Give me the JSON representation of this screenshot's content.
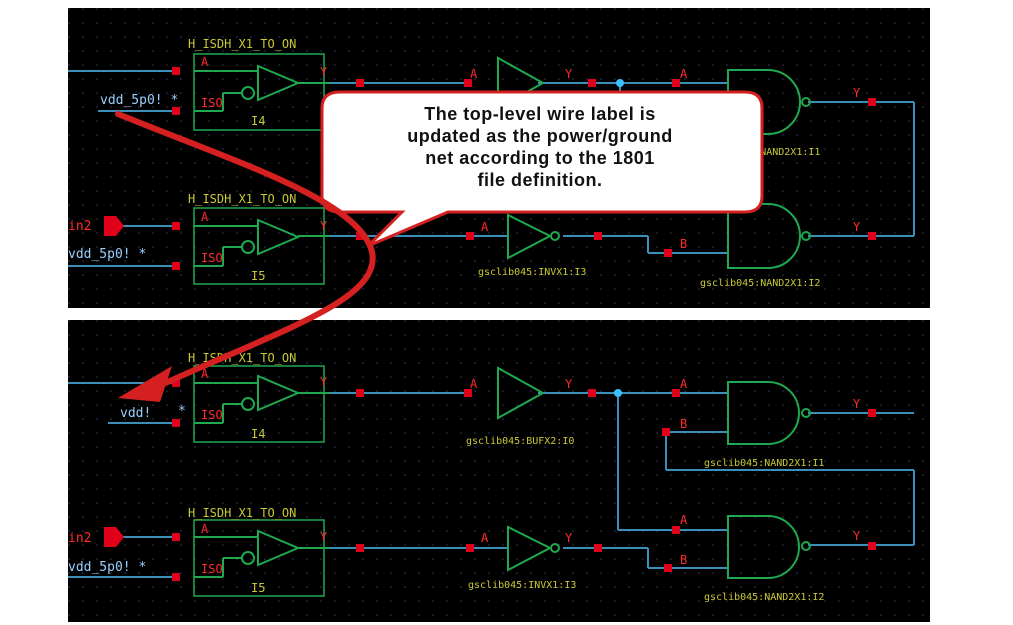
{
  "callout": {
    "text_lines": [
      "The top-level wire label is",
      "updated as the power/ground",
      "net according to the 1801",
      "file definition."
    ]
  },
  "colors": {
    "background": "#000000",
    "wire": "#3b8fb8",
    "gate": "#1fa84f",
    "pin": "#e0001a",
    "pin_label": "#ff2a2a",
    "inst_label": "#c9c935",
    "net_label": "#9ad0ff",
    "arrow": "#d42020",
    "callout_border": "#d42020"
  },
  "top_panel": {
    "iso1": {
      "cell": "H_ISDH_X1_TO_ON",
      "pin_a": "A",
      "pin_iso": "ISO",
      "pin_y": "Y",
      "inst": "I4"
    },
    "iso2": {
      "cell": "H_ISDH_X1_TO_ON",
      "pin_a": "A",
      "pin_iso": "ISO",
      "pin_y": "Y",
      "inst": "I5"
    },
    "net_vdd1": "vdd_5p0! *",
    "net_vdd2": "vdd_5p0! *",
    "input_in2": "in2",
    "buf": {
      "pin_a": "A",
      "pin_y": "Y"
    },
    "nand1": {
      "pin_a": "A",
      "pin_y": "Y",
      "inst": "gsclib045:NAND2X1:I1"
    },
    "inv": {
      "pin_a": "A",
      "inst": "gsclib045:INVX1:I3"
    },
    "nand2": {
      "pin_b": "B",
      "pin_y": "Y",
      "inst": "gsclib045:NAND2X1:I2"
    }
  },
  "bottom_panel": {
    "iso1": {
      "cell": "H_ISDH_X1_TO_ON",
      "pin_a": "A",
      "pin_iso": "ISO",
      "pin_y": "Y",
      "inst": "I4"
    },
    "iso2": {
      "cell": "H_ISDH_X1_TO_ON",
      "pin_a": "A",
      "pin_iso": "ISO",
      "pin_y": "Y",
      "inst": "I5"
    },
    "net_vdd1": "vdd!",
    "net_vdd1_star": "*",
    "net_vdd2": "vdd_5p0! *",
    "input_in2": "in2",
    "buf": {
      "pin_a": "A",
      "pin_y": "Y",
      "inst": "gsclib045:BUFX2:I0"
    },
    "nand1": {
      "pin_a": "A",
      "pin_b": "B",
      "pin_y": "Y",
      "inst": "gsclib045:NAND2X1:I1"
    },
    "inv": {
      "pin_a": "A",
      "pin_y": "Y",
      "inst": "gsclib045:INVX1:I3"
    },
    "nand2": {
      "pin_a": "A",
      "pin_b": "B",
      "pin_y": "Y",
      "inst": "gsclib045:NAND2X1:I2"
    }
  }
}
